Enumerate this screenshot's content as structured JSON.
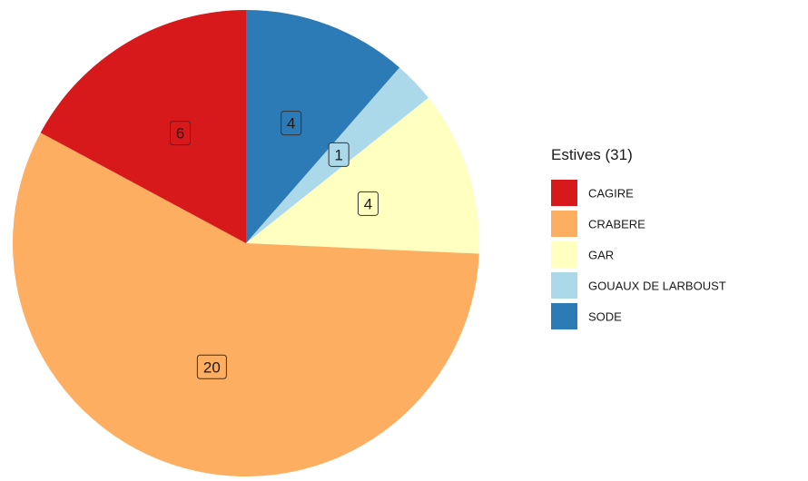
{
  "chart_data": {
    "type": "pie",
    "title": "",
    "legend": {
      "title": "Estives (31)",
      "position": "right"
    },
    "slices": [
      {
        "label": "CAGIRE",
        "value": 6,
        "color": "#d7191c"
      },
      {
        "label": "CRABERE",
        "value": 20,
        "color": "#fdae61"
      },
      {
        "label": "GAR",
        "value": 4,
        "color": "#ffffbf"
      },
      {
        "label": "GOUAUX DE LARBOUST",
        "value": 1,
        "color": "#abd9e9"
      },
      {
        "label": "SODE",
        "value": 4,
        "color": "#2c7bb6"
      }
    ]
  }
}
